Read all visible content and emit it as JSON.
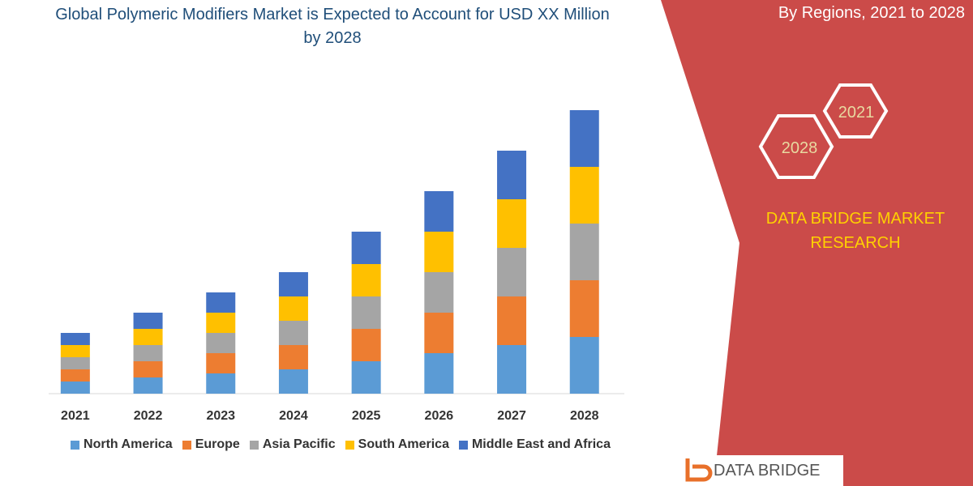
{
  "chart_data": {
    "type": "stacked_bar",
    "title": "Global Polymeric Modifiers Market is Expected to Account for USD XX Million by 2028",
    "annotations": [
      "By Regions, 2021 to 2028",
      "2021",
      "2028",
      "DATA BRIDGE MARKET RESEARCH",
      "DATA BRIDGE"
    ],
    "categories": [
      "2021",
      "2022",
      "2023",
      "2024",
      "2025",
      "2026",
      "2027",
      "2028"
    ],
    "series": [
      {
        "name": "North America",
        "color": "#5b9bd5",
        "values": [
          15,
          20,
          25,
          30,
          40,
          50,
          60,
          70
        ]
      },
      {
        "name": "Europe",
        "color": "#ed7d31",
        "values": [
          15,
          20,
          25,
          30,
          40,
          50,
          60,
          70
        ]
      },
      {
        "name": "Asia Pacific",
        "color": "#a5a5a5",
        "values": [
          15,
          20,
          25,
          30,
          40,
          50,
          60,
          70
        ]
      },
      {
        "name": "South America",
        "color": "#ffc000",
        "values": [
          15,
          20,
          25,
          30,
          40,
          50,
          60,
          70
        ]
      },
      {
        "name": "Middle East and Africa",
        "color": "#4472c4",
        "values": [
          15,
          20,
          25,
          30,
          40,
          50,
          60,
          70
        ]
      }
    ],
    "legend": "bottom"
  }
}
